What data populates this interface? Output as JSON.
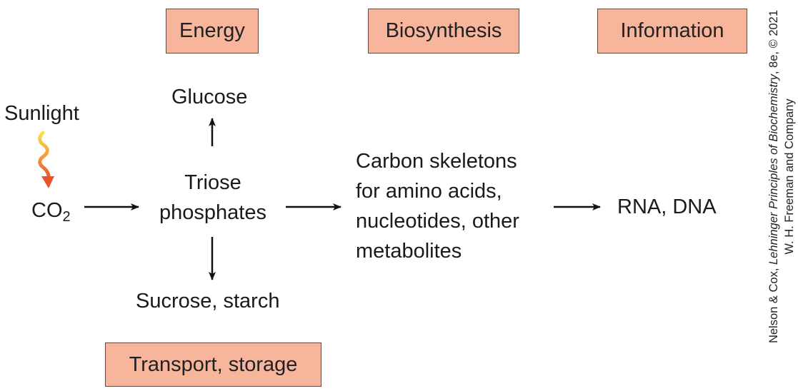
{
  "categories": {
    "energy": "Energy",
    "biosynthesis": "Biosynthesis",
    "information": "Information",
    "transport": "Transport, storage"
  },
  "nodes": {
    "sunlight": "Sunlight",
    "co2_base": "CO",
    "co2_sub": "2",
    "glucose": "Glucose",
    "triose_line1": "Triose",
    "triose_line2": "phosphates",
    "sucrose": "Sucrose, starch",
    "carbon_line1": "Carbon skeletons",
    "carbon_line2": "for amino acids,",
    "carbon_line3": "nucleotides, other",
    "carbon_line4": "metabolites",
    "rna_dna": "RNA, DNA"
  },
  "credit": {
    "line1_prefix": "Nelson & Cox, ",
    "line1_title": "Lehninger Principles of Biochemistry",
    "line1_suffix": ", 8e, © 2021",
    "line2": "W. H. Freeman and Company"
  },
  "colors": {
    "box_fill": "#f7b59c",
    "box_border": "#6b4a3e",
    "sun_arrow_top": "#f9e04b",
    "sun_arrow_bottom": "#e8552a"
  }
}
